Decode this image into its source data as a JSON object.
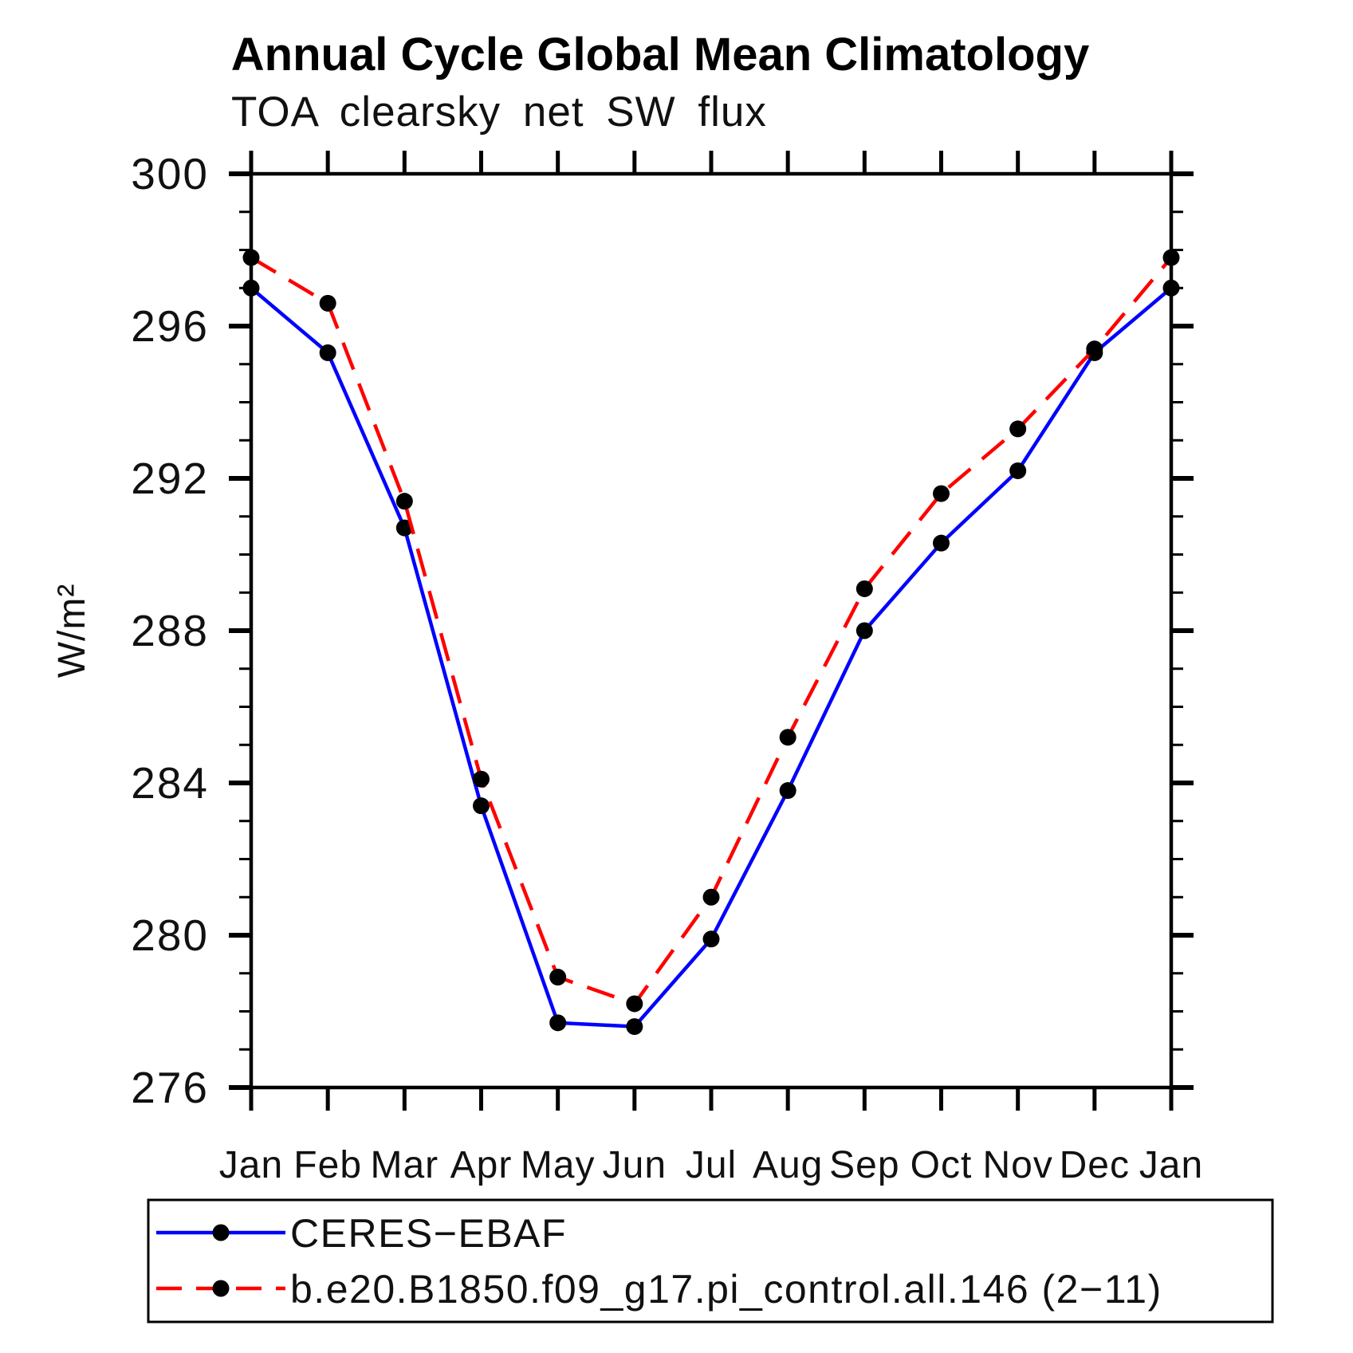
{
  "title": "Annual Cycle Global Mean Climatology",
  "subtitle": "TOA clearsky net SW flux",
  "y_axis_label": "W/m²",
  "chart_data": {
    "type": "line",
    "categories": [
      "Jan",
      "Feb",
      "Mar",
      "Apr",
      "May",
      "Jun",
      "Jul",
      "Aug",
      "Sep",
      "Oct",
      "Nov",
      "Dec",
      "Jan"
    ],
    "series": [
      {
        "name": "CERES−EBAF",
        "color": "#0000ff",
        "line_style": "solid",
        "marker": "filled-circle",
        "marker_color": "#000000",
        "values": [
          297.0,
          295.3,
          290.7,
          283.4,
          277.7,
          277.6,
          279.9,
          283.8,
          288.0,
          290.3,
          292.2,
          295.3,
          297.0
        ]
      },
      {
        "name": "b.e20.B1850.f09_g17.pi_control.all.146 (2−11)",
        "color": "#ff0000",
        "line_style": "dashed",
        "marker": "filled-circle",
        "marker_color": "#000000",
        "values": [
          297.8,
          296.6,
          291.4,
          284.1,
          278.9,
          278.2,
          281.0,
          285.2,
          289.1,
          291.6,
          293.3,
          295.4,
          297.8
        ]
      }
    ],
    "xlabel": "",
    "ylabel": "W/m²",
    "ylim": [
      276,
      300
    ],
    "y_major_step": 4,
    "y_minor_step": 1,
    "y_tick_labels": [
      "276",
      "280",
      "284",
      "288",
      "292",
      "296",
      "300"
    ],
    "grid": false,
    "legend_position": "bottom-left-box"
  }
}
